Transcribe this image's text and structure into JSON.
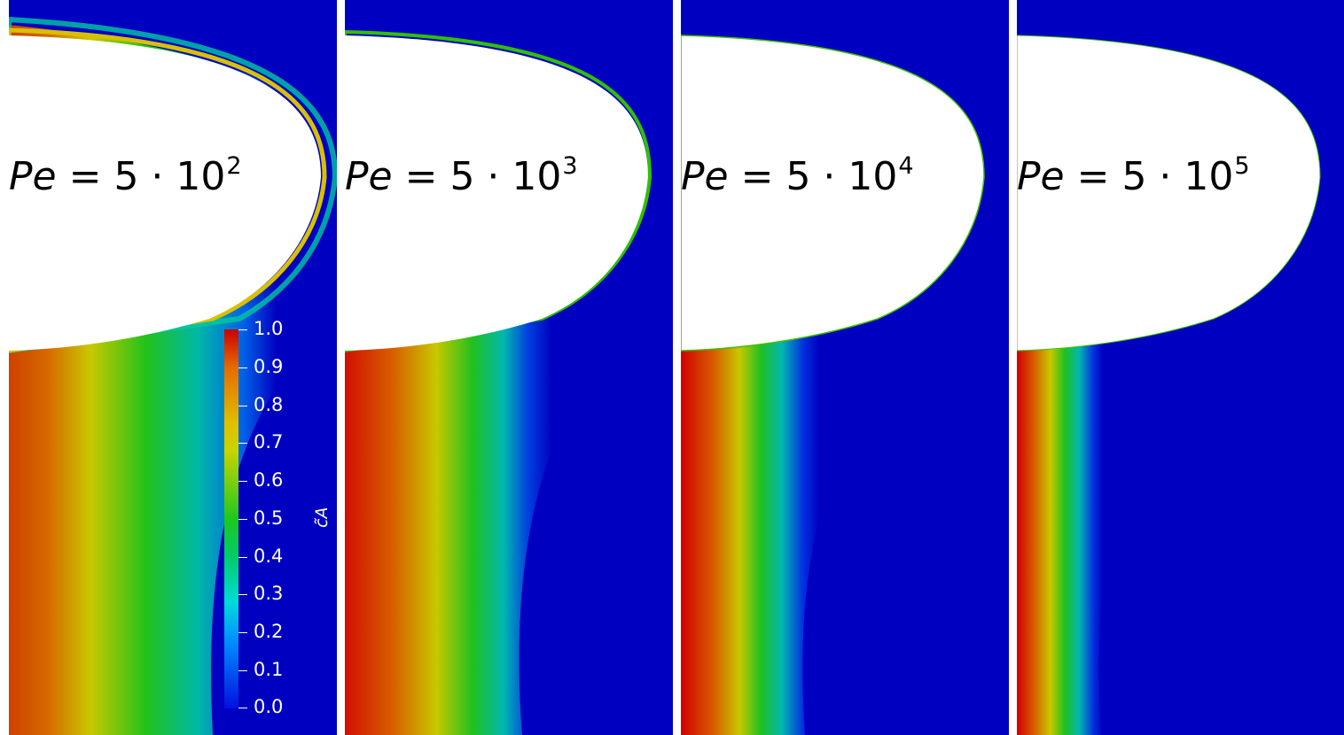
{
  "panels": [
    {
      "label_var": "Pe",
      "label_rest": " = 5 · 10",
      "label_exp": "2"
    },
    {
      "label_var": "Pe",
      "label_rest": " = 5 · 10",
      "label_exp": "3"
    },
    {
      "label_var": "Pe",
      "label_rest": " = 5 · 10",
      "label_exp": "4"
    },
    {
      "label_var": "Pe",
      "label_rest": " = 5 · 10",
      "label_exp": "5"
    }
  ],
  "colorbar": {
    "title": "c̃A",
    "ticks": [
      "1.0",
      "0.9",
      "0.8",
      "0.7",
      "0.6",
      "0.5",
      "0.4",
      "0.3",
      "0.2",
      "0.1",
      "0.0"
    ],
    "range": [
      0.0,
      1.0
    ],
    "colors": [
      "#cc0000",
      "#e46b00",
      "#e0c000",
      "#1ec81e",
      "#00dcd8",
      "#0090ff",
      "#0010e0"
    ]
  },
  "colors": {
    "background": "#0000c0",
    "high": "#cc0000",
    "body": "#ffffff"
  }
}
